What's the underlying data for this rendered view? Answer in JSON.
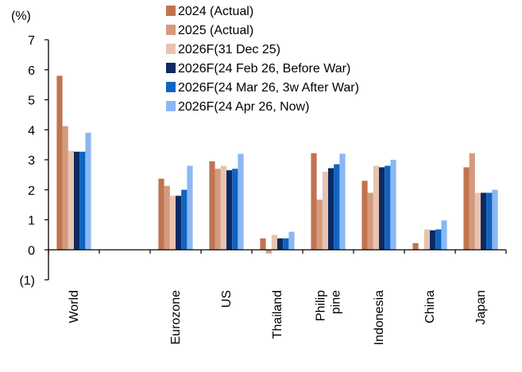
{
  "chart_data": {
    "type": "bar",
    "ylabel": "(%)",
    "ylim": [
      -1,
      7
    ],
    "yticks": [
      -1,
      0,
      1,
      2,
      3,
      4,
      5,
      6,
      7
    ],
    "ytick_labels": [
      "(1)",
      "0",
      "1",
      "2",
      "3",
      "4",
      "5",
      "6",
      "7"
    ],
    "grid": false,
    "legend_position": "top",
    "categories": [
      "World",
      "",
      "Eurozone",
      "US",
      "Thailand",
      "Philip\npine",
      "Indonesia",
      "China",
      "Japan"
    ],
    "series": [
      {
        "name": "2024 (Actual)",
        "color": "#c0744f",
        "values": [
          5.8,
          null,
          2.37,
          2.95,
          0.38,
          3.22,
          2.3,
          0.22,
          2.75
        ]
      },
      {
        "name": "2025 (Actual)",
        "color": "#d49a7c",
        "values": [
          4.12,
          null,
          2.13,
          2.7,
          -0.12,
          1.67,
          1.9,
          null,
          3.22
        ]
      },
      {
        "name": "2026F(31 Dec 25)",
        "color": "#e8c3b0",
        "values": [
          3.3,
          null,
          1.8,
          2.8,
          0.5,
          2.6,
          2.8,
          0.68,
          1.9
        ]
      },
      {
        "name": "2026F(24 Feb 26, Before War)",
        "color": "#0d2a63",
        "values": [
          3.27,
          null,
          1.8,
          2.65,
          0.38,
          2.72,
          2.75,
          0.65,
          1.9
        ]
      },
      {
        "name": "2026F(24 Mar 26, 3w After War)",
        "color": "#0e64c0",
        "values": [
          3.27,
          null,
          2.0,
          2.7,
          0.38,
          2.85,
          2.8,
          0.68,
          1.9
        ]
      },
      {
        "name": "2026F(24 Apr 26, Now)",
        "color": "#8ab8f4",
        "values": [
          3.9,
          null,
          2.8,
          3.2,
          0.6,
          3.2,
          3.0,
          0.98,
          2.0
        ]
      }
    ]
  }
}
